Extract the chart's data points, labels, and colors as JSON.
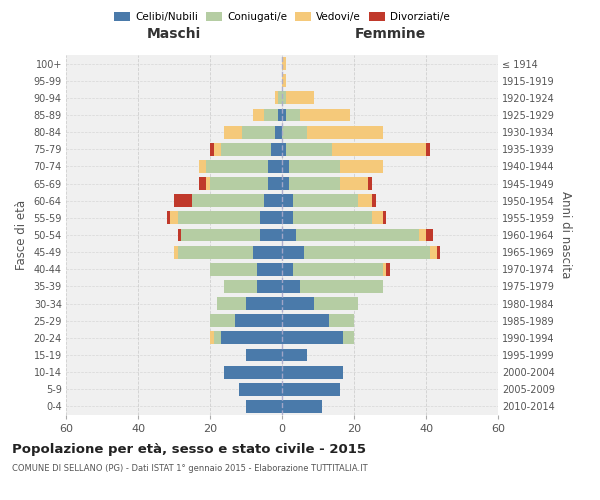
{
  "age_groups": [
    "0-4",
    "5-9",
    "10-14",
    "15-19",
    "20-24",
    "25-29",
    "30-34",
    "35-39",
    "40-44",
    "45-49",
    "50-54",
    "55-59",
    "60-64",
    "65-69",
    "70-74",
    "75-79",
    "80-84",
    "85-89",
    "90-94",
    "95-99",
    "100+"
  ],
  "birth_years": [
    "2010-2014",
    "2005-2009",
    "2000-2004",
    "1995-1999",
    "1990-1994",
    "1985-1989",
    "1980-1984",
    "1975-1979",
    "1970-1974",
    "1965-1969",
    "1960-1964",
    "1955-1959",
    "1950-1954",
    "1945-1949",
    "1940-1944",
    "1935-1939",
    "1930-1934",
    "1925-1929",
    "1920-1924",
    "1915-1919",
    "≤ 1914"
  ],
  "maschi": {
    "celibi": [
      10,
      12,
      16,
      10,
      17,
      13,
      10,
      7,
      7,
      8,
      6,
      6,
      5,
      4,
      4,
      3,
      2,
      1,
      0,
      0,
      0
    ],
    "coniugati": [
      0,
      0,
      0,
      0,
      2,
      7,
      8,
      9,
      13,
      21,
      22,
      23,
      20,
      16,
      17,
      14,
      9,
      4,
      1,
      0,
      0
    ],
    "vedovi": [
      0,
      0,
      0,
      0,
      1,
      0,
      0,
      0,
      0,
      1,
      0,
      2,
      0,
      1,
      2,
      2,
      5,
      3,
      1,
      0,
      0
    ],
    "divorziati": [
      0,
      0,
      0,
      0,
      0,
      0,
      0,
      0,
      0,
      0,
      1,
      1,
      5,
      2,
      0,
      1,
      0,
      0,
      0,
      0,
      0
    ]
  },
  "femmine": {
    "nubili": [
      11,
      16,
      17,
      7,
      17,
      13,
      9,
      5,
      3,
      6,
      4,
      3,
      3,
      2,
      2,
      1,
      0,
      1,
      0,
      0,
      0
    ],
    "coniugate": [
      0,
      0,
      0,
      0,
      3,
      7,
      12,
      23,
      25,
      35,
      34,
      22,
      18,
      14,
      14,
      13,
      7,
      4,
      1,
      0,
      0
    ],
    "vedove": [
      0,
      0,
      0,
      0,
      0,
      0,
      0,
      0,
      1,
      2,
      2,
      3,
      4,
      8,
      12,
      26,
      21,
      14,
      8,
      1,
      1
    ],
    "divorziate": [
      0,
      0,
      0,
      0,
      0,
      0,
      0,
      0,
      1,
      1,
      2,
      1,
      1,
      1,
      0,
      1,
      0,
      0,
      0,
      0,
      0
    ]
  },
  "colors": {
    "celibi": "#4a7aaa",
    "coniugati": "#b5cda3",
    "vedovi": "#f5c97a",
    "divorziati": "#c0392b"
  },
  "xlim": 60,
  "title": "Popolazione per età, sesso e stato civile - 2015",
  "subtitle": "COMUNE DI SELLANO (PG) - Dati ISTAT 1° gennaio 2015 - Elaborazione TUTTITALIA.IT",
  "ylabel_left": "Fasce di età",
  "ylabel_right": "Anni di nascita",
  "xlabel_left": "Maschi",
  "xlabel_right": "Femmine",
  "bg_color": "#f0f0f0",
  "grid_color": "#cccccc"
}
